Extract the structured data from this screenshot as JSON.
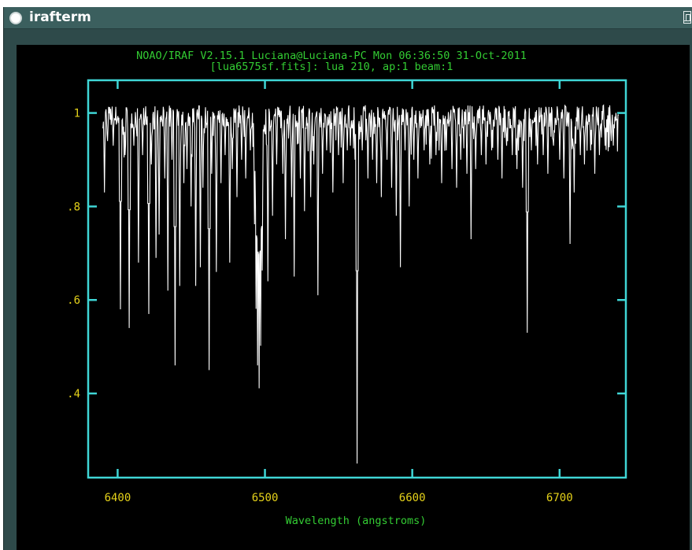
{
  "window": {
    "title": "irafterm"
  },
  "plot": {
    "header_line1": "NOAO/IRAF V2.15.1 Luciana@Luciana-PC Mon 06:36:50 31-Oct-2011",
    "header_line2": "[lua6575sf.fits]: lua 210, ap:1 beam:1",
    "x_axis_label": "Wavelength (angstroms)",
    "colors": {
      "frame": "#3fd6d6",
      "text": "#33cc33",
      "tick_labels": "#e5d21a",
      "spectrum": "#ffffff",
      "background": "#000000"
    }
  },
  "chart_data": {
    "type": "line",
    "xlabel": "Wavelength (angstroms)",
    "ylabel": "",
    "xlim": [
      6380,
      6745
    ],
    "ylim": [
      0.22,
      1.07
    ],
    "x_ticks": [
      6400,
      6500,
      6600,
      6700
    ],
    "x_tick_labels": [
      "6400",
      "6500",
      "6600",
      "6700"
    ],
    "y_ticks": [
      0.4,
      0.6,
      0.8,
      1.0
    ],
    "y_tick_labels": [
      ".4",
      ".6",
      ".8",
      "1"
    ],
    "continuum": 1.0,
    "wavelength_range": [
      6390,
      6740
    ],
    "absorption_lines": [
      {
        "x": 6391,
        "y": 0.83
      },
      {
        "x": 6393,
        "y": 0.94
      },
      {
        "x": 6397,
        "y": 0.93
      },
      {
        "x": 6402,
        "y": 0.58
      },
      {
        "x": 6405,
        "y": 0.91
      },
      {
        "x": 6408,
        "y": 0.54
      },
      {
        "x": 6411,
        "y": 0.93
      },
      {
        "x": 6414,
        "y": 0.68
      },
      {
        "x": 6417,
        "y": 0.91
      },
      {
        "x": 6421,
        "y": 0.57
      },
      {
        "x": 6423,
        "y": 0.89
      },
      {
        "x": 6426,
        "y": 0.69
      },
      {
        "x": 6428,
        "y": 0.74
      },
      {
        "x": 6432,
        "y": 0.86
      },
      {
        "x": 6434,
        "y": 0.62
      },
      {
        "x": 6437,
        "y": 0.9
      },
      {
        "x": 6439,
        "y": 0.46
      },
      {
        "x": 6442,
        "y": 0.63
      },
      {
        "x": 6445,
        "y": 0.85
      },
      {
        "x": 6447,
        "y": 0.88
      },
      {
        "x": 6450,
        "y": 0.8
      },
      {
        "x": 6453,
        "y": 0.63
      },
      {
        "x": 6456,
        "y": 0.67
      },
      {
        "x": 6458,
        "y": 0.84
      },
      {
        "x": 6462,
        "y": 0.45
      },
      {
        "x": 6464,
        "y": 0.87
      },
      {
        "x": 6467,
        "y": 0.66
      },
      {
        "x": 6470,
        "y": 0.85
      },
      {
        "x": 6473,
        "y": 0.91
      },
      {
        "x": 6476,
        "y": 0.68
      },
      {
        "x": 6478,
        "y": 0.88
      },
      {
        "x": 6481,
        "y": 0.82
      },
      {
        "x": 6484,
        "y": 0.9
      },
      {
        "x": 6487,
        "y": 0.86
      },
      {
        "x": 6490,
        "y": 0.92
      },
      {
        "x": 6493,
        "y": 0.78
      },
      {
        "x": 6494,
        "y": 0.62
      },
      {
        "x": 6495,
        "y": 0.52
      },
      {
        "x": 6496,
        "y": 0.49
      },
      {
        "x": 6497,
        "y": 0.56
      },
      {
        "x": 6498,
        "y": 0.7
      },
      {
        "x": 6502,
        "y": 0.64
      },
      {
        "x": 6505,
        "y": 0.78
      },
      {
        "x": 6508,
        "y": 0.89
      },
      {
        "x": 6512,
        "y": 0.87
      },
      {
        "x": 6514,
        "y": 0.73
      },
      {
        "x": 6518,
        "y": 0.82
      },
      {
        "x": 6520,
        "y": 0.65
      },
      {
        "x": 6524,
        "y": 0.86
      },
      {
        "x": 6527,
        "y": 0.79
      },
      {
        "x": 6531,
        "y": 0.82
      },
      {
        "x": 6533,
        "y": 0.89
      },
      {
        "x": 6536,
        "y": 0.61
      },
      {
        "x": 6539,
        "y": 0.87
      },
      {
        "x": 6542,
        "y": 0.92
      },
      {
        "x": 6546,
        "y": 0.83
      },
      {
        "x": 6550,
        "y": 0.91
      },
      {
        "x": 6553,
        "y": 0.85
      },
      {
        "x": 6556,
        "y": 0.92
      },
      {
        "x": 6558,
        "y": 0.93
      },
      {
        "x": 6561,
        "y": 0.9
      },
      {
        "x": 6562.5,
        "y": 0.25
      },
      {
        "x": 6566,
        "y": 0.92
      },
      {
        "x": 6570,
        "y": 0.86
      },
      {
        "x": 6573,
        "y": 0.9
      },
      {
        "x": 6576,
        "y": 0.85
      },
      {
        "x": 6579,
        "y": 0.82
      },
      {
        "x": 6583,
        "y": 0.9
      },
      {
        "x": 6586,
        "y": 0.84
      },
      {
        "x": 6589,
        "y": 0.78
      },
      {
        "x": 6592,
        "y": 0.67
      },
      {
        "x": 6595,
        "y": 0.92
      },
      {
        "x": 6598,
        "y": 0.8
      },
      {
        "x": 6601,
        "y": 0.9
      },
      {
        "x": 6604,
        "y": 0.86
      },
      {
        "x": 6608,
        "y": 0.92
      },
      {
        "x": 6612,
        "y": 0.89
      },
      {
        "x": 6616,
        "y": 0.91
      },
      {
        "x": 6620,
        "y": 0.85
      },
      {
        "x": 6623,
        "y": 0.92
      },
      {
        "x": 6627,
        "y": 0.88
      },
      {
        "x": 6630,
        "y": 0.84
      },
      {
        "x": 6633,
        "y": 0.9
      },
      {
        "x": 6637,
        "y": 0.87
      },
      {
        "x": 6640,
        "y": 0.73
      },
      {
        "x": 6643,
        "y": 0.88
      },
      {
        "x": 6647,
        "y": 0.91
      },
      {
        "x": 6650,
        "y": 0.89
      },
      {
        "x": 6654,
        "y": 0.92
      },
      {
        "x": 6658,
        "y": 0.9
      },
      {
        "x": 6661,
        "y": 0.86
      },
      {
        "x": 6664,
        "y": 0.93
      },
      {
        "x": 6668,
        "y": 0.91
      },
      {
        "x": 6671,
        "y": 0.88
      },
      {
        "x": 6675,
        "y": 0.84
      },
      {
        "x": 6678,
        "y": 0.53
      },
      {
        "x": 6681,
        "y": 0.92
      },
      {
        "x": 6685,
        "y": 0.89
      },
      {
        "x": 6689,
        "y": 0.91
      },
      {
        "x": 6692,
        "y": 0.87
      },
      {
        "x": 6696,
        "y": 0.93
      },
      {
        "x": 6700,
        "y": 0.9
      },
      {
        "x": 6703,
        "y": 0.86
      },
      {
        "x": 6707,
        "y": 0.72
      },
      {
        "x": 6710,
        "y": 0.83
      },
      {
        "x": 6714,
        "y": 0.91
      },
      {
        "x": 6717,
        "y": 0.89
      },
      {
        "x": 6721,
        "y": 0.92
      },
      {
        "x": 6724,
        "y": 0.87
      },
      {
        "x": 6727,
        "y": 0.91
      },
      {
        "x": 6731,
        "y": 0.93
      },
      {
        "x": 6735,
        "y": 0.94
      }
    ]
  }
}
